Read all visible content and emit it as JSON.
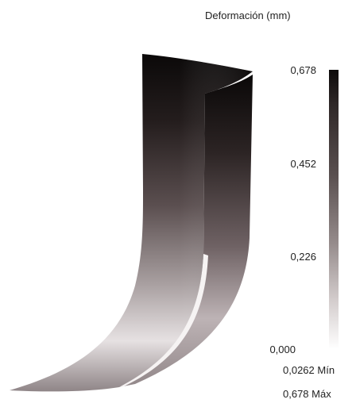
{
  "legend": {
    "title": "Deformación (mm)",
    "ticks": [
      "0,678",
      "0,452",
      "0,226",
      "0,000"
    ],
    "min_label": "0,0262 Mín",
    "max_label": "0,678 Máx",
    "colors": {
      "max": "#0d0b0b",
      "mid": "#958b8b",
      "min": "#ffffff"
    }
  },
  "model": {
    "description_icon": "deformed-blade-3d-model"
  }
}
